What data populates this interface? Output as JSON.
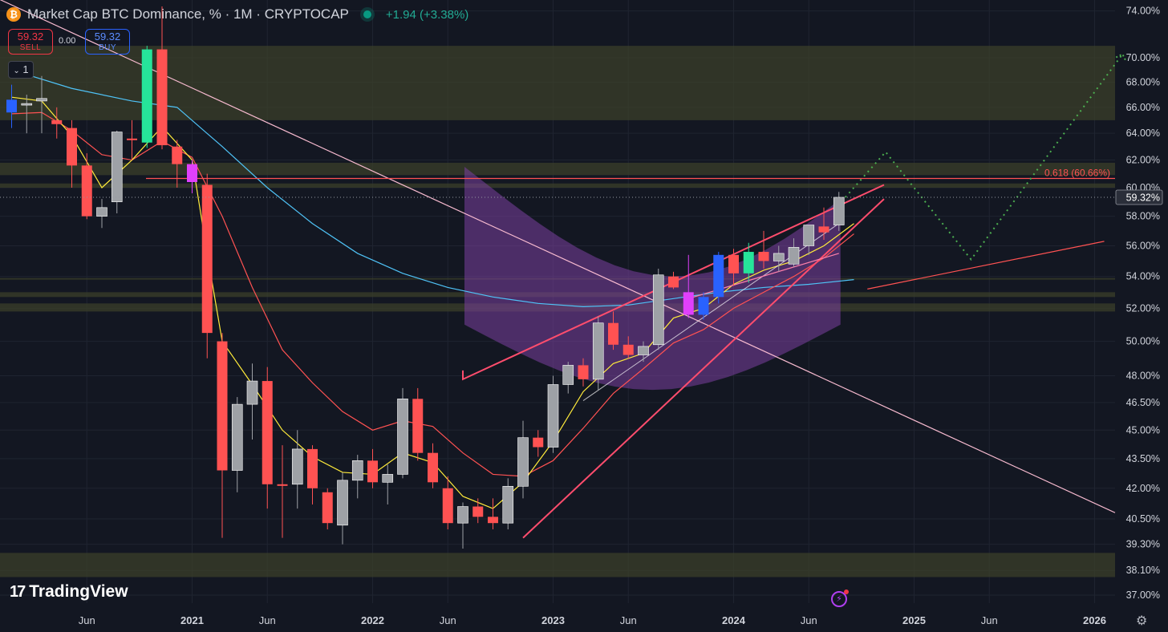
{
  "header": {
    "icon": "bitcoin-icon",
    "title": "Market Cap BTC Dominance, % · 1M · CRYPTOCAP",
    "change": "+1.94 (+3.38%)"
  },
  "trade": {
    "sell_value": "59.32",
    "sell_label": "SELL",
    "spread": "0.00",
    "buy_value": "59.32",
    "buy_label": "BUY",
    "quantity": "1"
  },
  "branding": {
    "logo": "TradingView"
  },
  "colors": {
    "background": "#131722",
    "grid": "#1f2430",
    "bull": "#26e49a",
    "bear": "#ff5252",
    "neutral": "#9ea1a6",
    "blue": "#2962ff",
    "magenta": "#e040fb",
    "ema_fast": "#ffeb3b",
    "ema_mid": "#ff5252",
    "ema_slow": "#4fc3f7",
    "zone": "#3b3f2a",
    "projection": "#4caf50"
  },
  "chart_data": {
    "type": "candlestick",
    "title": "Market Cap BTC Dominance, % · 1M · CRYPTOCAP",
    "scale": "log",
    "ylim": [
      36.5,
      74.5
    ],
    "x_ticks": [
      "Jun",
      "2021",
      "Jun",
      "2022",
      "Jun",
      "2023",
      "Jun",
      "2024",
      "Jun",
      "2025",
      "Jun",
      "2026"
    ],
    "y_ticks": [
      "74.00%",
      "70.00%",
      "68.00%",
      "66.00%",
      "64.00%",
      "62.00%",
      "60.00%",
      "58.00%",
      "56.00%",
      "54.00%",
      "52.00%",
      "50.00%",
      "48.00%",
      "46.50%",
      "45.00%",
      "43.50%",
      "42.00%",
      "40.50%",
      "39.30%",
      "38.10%",
      "37.00%"
    ],
    "last_price": "59.32%",
    "fib_label": "0.618 (60.66%)",
    "fib_level": 60.66,
    "candles": [
      {
        "t": "2020-01",
        "o": 66.6,
        "h": 67.8,
        "l": 64.4,
        "c": 65.6,
        "color": "blue"
      },
      {
        "t": "2020-02",
        "o": 66.3,
        "h": 67.0,
        "l": 64.0,
        "c": 66.3,
        "color": "neutral"
      },
      {
        "t": "2020-03",
        "o": 66.5,
        "h": 68.5,
        "l": 64.0,
        "c": 66.7,
        "color": "neutral"
      },
      {
        "t": "2020-04",
        "o": 65.0,
        "h": 66.0,
        "l": 63.6,
        "c": 64.7,
        "color": "bear"
      },
      {
        "t": "2020-05",
        "o": 64.4,
        "h": 65.0,
        "l": 60.0,
        "c": 61.6,
        "color": "bear"
      },
      {
        "t": "2020-06",
        "o": 61.6,
        "h": 62.5,
        "l": 57.8,
        "c": 58.0,
        "color": "bear"
      },
      {
        "t": "2020-07",
        "o": 58.0,
        "h": 59.2,
        "l": 57.2,
        "c": 58.6,
        "color": "neutral"
      },
      {
        "t": "2020-08",
        "o": 59.0,
        "h": 64.2,
        "l": 58.2,
        "c": 64.1,
        "color": "neutral"
      },
      {
        "t": "2020-09",
        "o": 63.6,
        "h": 65.0,
        "l": 62.0,
        "c": 63.6,
        "color": "bear"
      },
      {
        "t": "2020-10",
        "o": 63.3,
        "h": 71.0,
        "l": 62.9,
        "c": 70.7,
        "color": "bull"
      },
      {
        "t": "2020-11",
        "o": 70.7,
        "h": 74.4,
        "l": 62.8,
        "c": 63.1,
        "color": "bear"
      },
      {
        "t": "2020-12",
        "o": 63.0,
        "h": 63.5,
        "l": 60.0,
        "c": 61.7,
        "color": "bear"
      },
      {
        "t": "2021-01",
        "o": 61.7,
        "h": 62.0,
        "l": 59.6,
        "c": 60.4,
        "color": "magenta"
      },
      {
        "t": "2021-02",
        "o": 60.2,
        "h": 61.0,
        "l": 49.0,
        "c": 50.5,
        "color": "bear"
      },
      {
        "t": "2021-03",
        "o": 50.0,
        "h": 50.5,
        "l": 39.6,
        "c": 42.9,
        "color": "bear"
      },
      {
        "t": "2021-04",
        "o": 42.9,
        "h": 46.8,
        "l": 41.8,
        "c": 46.4,
        "color": "neutral"
      },
      {
        "t": "2021-05",
        "o": 46.4,
        "h": 48.7,
        "l": 44.5,
        "c": 47.7,
        "color": "neutral"
      },
      {
        "t": "2021-06",
        "o": 47.7,
        "h": 48.5,
        "l": 41.0,
        "c": 42.2,
        "color": "bear"
      },
      {
        "t": "2021-07",
        "o": 42.2,
        "h": 44.2,
        "l": 39.6,
        "c": 42.2,
        "color": "bear"
      },
      {
        "t": "2021-08",
        "o": 42.2,
        "h": 45.0,
        "l": 41.0,
        "c": 44.0,
        "color": "neutral"
      },
      {
        "t": "2021-09",
        "o": 44.0,
        "h": 44.2,
        "l": 41.2,
        "c": 42.0,
        "color": "bear"
      },
      {
        "t": "2021-10",
        "o": 41.8,
        "h": 42.0,
        "l": 40.0,
        "c": 40.3,
        "color": "bear"
      },
      {
        "t": "2021-11",
        "o": 40.2,
        "h": 42.8,
        "l": 39.3,
        "c": 42.4,
        "color": "neutral"
      },
      {
        "t": "2021-12",
        "o": 42.4,
        "h": 43.7,
        "l": 41.5,
        "c": 43.4,
        "color": "neutral"
      },
      {
        "t": "2022-01",
        "o": 43.4,
        "h": 44.0,
        "l": 42.0,
        "c": 42.3,
        "color": "bear"
      },
      {
        "t": "2022-02",
        "o": 42.3,
        "h": 43.2,
        "l": 41.2,
        "c": 42.7,
        "color": "neutral"
      },
      {
        "t": "2022-03",
        "o": 42.7,
        "h": 47.3,
        "l": 42.5,
        "c": 46.7,
        "color": "neutral"
      },
      {
        "t": "2022-04",
        "o": 46.7,
        "h": 47.3,
        "l": 43.4,
        "c": 43.8,
        "color": "bear"
      },
      {
        "t": "2022-05",
        "o": 43.8,
        "h": 44.3,
        "l": 42.0,
        "c": 42.3,
        "color": "bear"
      },
      {
        "t": "2022-06",
        "o": 42.0,
        "h": 42.6,
        "l": 40.0,
        "c": 40.3,
        "color": "bear"
      },
      {
        "t": "2022-07",
        "o": 40.3,
        "h": 41.3,
        "l": 39.1,
        "c": 41.1,
        "color": "neutral"
      },
      {
        "t": "2022-08",
        "o": 41.1,
        "h": 41.5,
        "l": 40.3,
        "c": 40.6,
        "color": "bear"
      },
      {
        "t": "2022-09",
        "o": 40.6,
        "h": 41.5,
        "l": 40.0,
        "c": 40.3,
        "color": "bear"
      },
      {
        "t": "2022-10",
        "o": 40.3,
        "h": 42.5,
        "l": 40.0,
        "c": 42.1,
        "color": "neutral"
      },
      {
        "t": "2022-11",
        "o": 42.1,
        "h": 45.5,
        "l": 41.5,
        "c": 44.6,
        "color": "neutral"
      },
      {
        "t": "2022-12",
        "o": 44.6,
        "h": 45.0,
        "l": 43.6,
        "c": 44.1,
        "color": "bear"
      },
      {
        "t": "2023-01",
        "o": 44.1,
        "h": 48.0,
        "l": 43.8,
        "c": 47.5,
        "color": "neutral"
      },
      {
        "t": "2023-02",
        "o": 47.5,
        "h": 48.8,
        "l": 47.0,
        "c": 48.6,
        "color": "neutral"
      },
      {
        "t": "2023-03",
        "o": 48.6,
        "h": 49.0,
        "l": 47.4,
        "c": 47.8,
        "color": "bear"
      },
      {
        "t": "2023-04",
        "o": 47.8,
        "h": 51.5,
        "l": 47.2,
        "c": 51.1,
        "color": "neutral"
      },
      {
        "t": "2023-05",
        "o": 51.1,
        "h": 51.8,
        "l": 49.5,
        "c": 49.8,
        "color": "bear"
      },
      {
        "t": "2023-06",
        "o": 49.8,
        "h": 50.3,
        "l": 49.0,
        "c": 49.2,
        "color": "bear"
      },
      {
        "t": "2023-07",
        "o": 49.2,
        "h": 50.0,
        "l": 48.8,
        "c": 49.7,
        "color": "neutral"
      },
      {
        "t": "2023-08",
        "o": 49.8,
        "h": 54.5,
        "l": 49.5,
        "c": 54.1,
        "color": "neutral"
      },
      {
        "t": "2023-09",
        "o": 54.0,
        "h": 54.3,
        "l": 53.2,
        "c": 53.3,
        "color": "bear"
      },
      {
        "t": "2023-10",
        "o": 53.0,
        "h": 55.4,
        "l": 51.4,
        "c": 51.6,
        "color": "magenta"
      },
      {
        "t": "2023-11",
        "o": 51.6,
        "h": 53.0,
        "l": 51.3,
        "c": 52.7,
        "color": "blue"
      },
      {
        "t": "2023-12",
        "o": 52.7,
        "h": 55.6,
        "l": 52.3,
        "c": 55.4,
        "color": "blue"
      },
      {
        "t": "2024-01",
        "o": 55.4,
        "h": 55.8,
        "l": 53.4,
        "c": 54.2,
        "color": "bear"
      },
      {
        "t": "2024-02",
        "o": 54.2,
        "h": 56.2,
        "l": 53.6,
        "c": 55.6,
        "color": "bull"
      },
      {
        "t": "2024-03",
        "o": 55.6,
        "h": 57.0,
        "l": 54.5,
        "c": 55.0,
        "color": "bear"
      },
      {
        "t": "2024-04",
        "o": 55.0,
        "h": 56.0,
        "l": 54.3,
        "c": 55.5,
        "color": "neutral"
      },
      {
        "t": "2024-05",
        "o": 54.8,
        "h": 56.5,
        "l": 54.6,
        "c": 55.9,
        "color": "neutral"
      },
      {
        "t": "2024-06",
        "o": 56.0,
        "h": 57.4,
        "l": 55.4,
        "c": 57.4,
        "color": "neutral"
      },
      {
        "t": "2024-07",
        "o": 57.3,
        "h": 58.6,
        "l": 56.4,
        "c": 56.9,
        "color": "bear"
      },
      {
        "t": "2024-08",
        "o": 57.4,
        "h": 59.7,
        "l": 57.0,
        "c": 59.32,
        "color": "neutral"
      }
    ],
    "zones": [
      {
        "from": 65.0,
        "to": 71.0
      },
      {
        "from": 60.9,
        "to": 61.8
      },
      {
        "from": 60.0,
        "to": 60.3
      },
      {
        "from": 53.8,
        "to": 53.9
      },
      {
        "from": 52.7,
        "to": 53.0
      },
      {
        "from": 51.8,
        "to": 52.3
      },
      {
        "from": 37.8,
        "to": 38.9
      }
    ],
    "ema_fast": [
      [
        0,
        66.8
      ],
      [
        2,
        66.5
      ],
      [
        4,
        63.8
      ],
      [
        6,
        60.0
      ],
      [
        8,
        62.0
      ],
      [
        10,
        64.5
      ],
      [
        12,
        62.0
      ],
      [
        13,
        55.5
      ],
      [
        14,
        50.0
      ],
      [
        16,
        47.5
      ],
      [
        18,
        45.0
      ],
      [
        20,
        43.6
      ],
      [
        22,
        42.8
      ],
      [
        24,
        42.7
      ],
      [
        26,
        43.8
      ],
      [
        28,
        43.3
      ],
      [
        30,
        41.6
      ],
      [
        32,
        41.0
      ],
      [
        34,
        42.3
      ],
      [
        36,
        44.4
      ],
      [
        38,
        47.1
      ],
      [
        40,
        48.7
      ],
      [
        42,
        49.3
      ],
      [
        44,
        51.4
      ],
      [
        46,
        52.0
      ],
      [
        48,
        53.5
      ],
      [
        50,
        54.4
      ],
      [
        52,
        55.0
      ],
      [
        54,
        56.0
      ],
      [
        56,
        57.5
      ]
    ],
    "ema_mid": [
      [
        0,
        65.5
      ],
      [
        2,
        65.6
      ],
      [
        4,
        64.2
      ],
      [
        6,
        62.4
      ],
      [
        8,
        62.0
      ],
      [
        10,
        63.4
      ],
      [
        12,
        62.2
      ],
      [
        14,
        58.0
      ],
      [
        16,
        53.3
      ],
      [
        18,
        49.5
      ],
      [
        20,
        47.6
      ],
      [
        22,
        46.0
      ],
      [
        24,
        45.0
      ],
      [
        26,
        45.5
      ],
      [
        28,
        45.2
      ],
      [
        30,
        43.8
      ],
      [
        32,
        42.7
      ],
      [
        34,
        42.6
      ],
      [
        36,
        43.4
      ],
      [
        38,
        45.1
      ],
      [
        40,
        47.0
      ],
      [
        42,
        48.4
      ],
      [
        44,
        49.9
      ],
      [
        46,
        50.7
      ],
      [
        48,
        52.0
      ],
      [
        50,
        53.0
      ],
      [
        52,
        54.0
      ],
      [
        54,
        55.2
      ],
      [
        56,
        56.8
      ]
    ],
    "ema_slow": [
      [
        0,
        69.0
      ],
      [
        4,
        67.5
      ],
      [
        8,
        66.5
      ],
      [
        11,
        66.0
      ],
      [
        14,
        63.0
      ],
      [
        17,
        60.0
      ],
      [
        20,
        57.5
      ],
      [
        23,
        55.5
      ],
      [
        26,
        54.2
      ],
      [
        29,
        53.3
      ],
      [
        32,
        52.7
      ],
      [
        35,
        52.3
      ],
      [
        38,
        52.1
      ],
      [
        41,
        52.2
      ],
      [
        44,
        52.6
      ],
      [
        47,
        53.0
      ],
      [
        50,
        53.3
      ],
      [
        53,
        53.5
      ],
      [
        56,
        53.8
      ]
    ]
  }
}
